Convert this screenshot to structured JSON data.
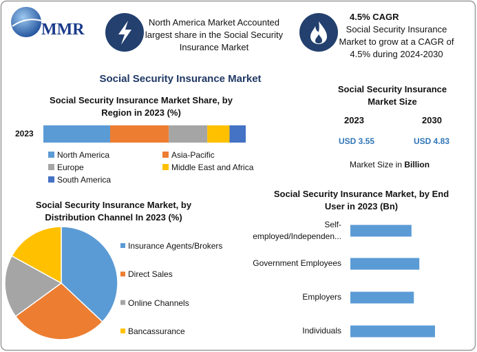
{
  "header": {
    "logo": "MMR",
    "highlight_1": "North America Market Accounted largest share in the Social Security Insurance Market",
    "highlight_2_title": "4.5% CAGR",
    "highlight_2_text": "Social Security Insurance Market to grow at a CAGR of 4.5% during 2024-2030"
  },
  "title": "Social Security Insurance Market",
  "market_size": {
    "title": "Social Security Insurance Market Size",
    "years": [
      "2023",
      "2030"
    ],
    "values": [
      "USD 3.55",
      "USD 4.83"
    ],
    "note": "Market Size in",
    "note_unit": "Billion"
  },
  "chart_data": [
    {
      "type": "stacked-bar",
      "title": "Social Security Insurance Market Share, by Region in 2023 (%)",
      "categories": [
        "2023"
      ],
      "series": [
        {
          "name": "North America",
          "color": "#5b9bd5",
          "values": [
            33
          ]
        },
        {
          "name": "Asia-Pacific",
          "color": "#ed7d31",
          "values": [
            29
          ]
        },
        {
          "name": "Europe",
          "color": "#a5a5a5",
          "values": [
            19
          ]
        },
        {
          "name": "Middle East and Africa",
          "color": "#ffc000",
          "values": [
            11
          ]
        },
        {
          "name": "South America",
          "color": "#4472c4",
          "values": [
            8
          ]
        }
      ]
    },
    {
      "type": "pie",
      "title": "Social Security Insurance Market, by Distribution Channel In 2023 (%)",
      "categories": [
        "Insurance Agents/Brokers",
        "Direct Sales",
        "Online Channels",
        "Bancassurance"
      ],
      "values": [
        37,
        28,
        18,
        17
      ],
      "colors": [
        "#5b9bd5",
        "#ed7d31",
        "#a5a5a5",
        "#ffc000"
      ]
    },
    {
      "type": "hbar",
      "title": "Social Security Insurance Market, by End User in 2023 (Bn)",
      "categories": [
        "Self-employed/Independen...",
        "Government Employees",
        "Employers",
        "Individuals"
      ],
      "values": [
        0.78,
        0.88,
        0.81,
        1.08
      ],
      "color": "#5b9bd5"
    }
  ]
}
